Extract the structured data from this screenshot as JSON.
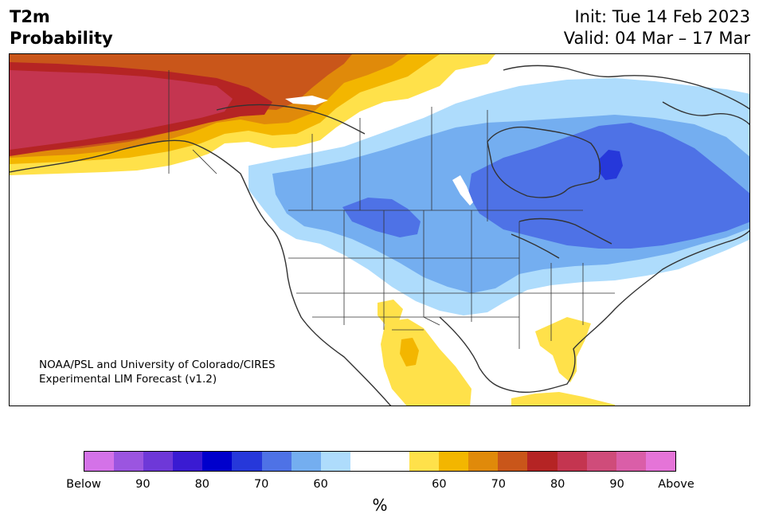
{
  "header": {
    "title_line1": "T2m",
    "title_line2": "Probability",
    "init_text": "Init: Tue 14 Feb 2023",
    "valid_text": "Valid: 04 Mar – 17 Mar"
  },
  "credit": {
    "line1": "NOAA/PSL and University of Colorado/CIRES",
    "line2": "Experimental LIM Forecast (v1.2)"
  },
  "colorbar": {
    "unit": "%",
    "colors": [
      "#d472e8",
      "#9b55e0",
      "#6e38d8",
      "#3a1bd2",
      "#0000cc",
      "#2638da",
      "#4e72e6",
      "#74aef0",
      "#aedcfc",
      "#ffffff",
      "#ffffff",
      "#ffe14a",
      "#f3b600",
      "#e08a0a",
      "#c9561a",
      "#b52424",
      "#c43550",
      "#cf4c7a",
      "#da5ea8",
      "#e574d8"
    ],
    "labels": [
      "Below",
      "90",
      "80",
      "70",
      "60",
      "60",
      "70",
      "80",
      "90",
      "Above"
    ]
  },
  "map_colors": {
    "below_60": "#aedcfc",
    "below_70": "#74aef0",
    "below_80": "#4e72e6",
    "below_85": "#2638da",
    "above_50": "#ffe14a",
    "above_60": "#f3b600",
    "above_70": "#e08a0a",
    "above_75": "#c9561a",
    "above_80": "#b52424",
    "above_85": "#c43550",
    "coast": "#333333"
  }
}
